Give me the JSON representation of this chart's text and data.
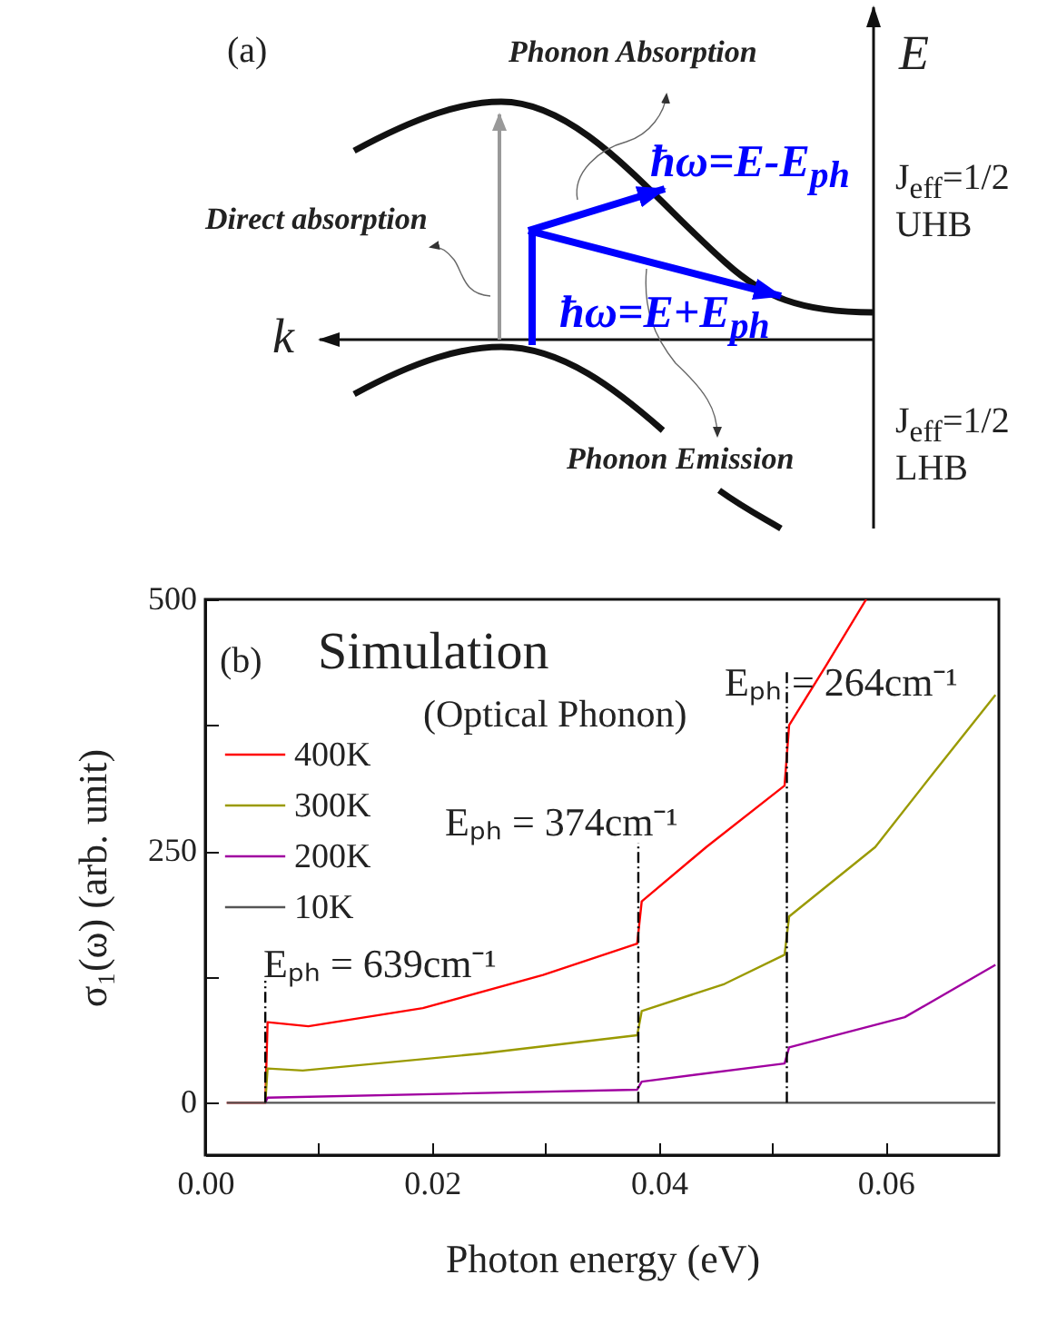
{
  "chart_data": [
    {
      "type": "other",
      "title": "(a)",
      "annotations": [
        "Phonon Absorption",
        "Direct absorption",
        "ħω=E-E$_{ph}$",
        "ħω=E+E$_{ph}$",
        "Phonon Emission",
        "E",
        "k",
        "J$_{eff}$=1/2",
        "UHB",
        "J$_{eff}$=1/2",
        "LHB"
      ]
    },
    {
      "type": "line",
      "xlabel": "Photon energy (eV)",
      "ylabel": "σ₁(ω) (arb. unit)",
      "annotations": [
        "(b)",
        "Simulation",
        "(Optical Phonon)",
        "Eₚₕ = 639cm⁻¹",
        "Eₚₕ = 374cm⁻¹",
        "Eₚₕ = 264cm⁻¹"
      ],
      "xlim": [
        0,
        0.07
      ],
      "xticks": [
        {
          "value": 0,
          "label": "0.00"
        },
        {
          "value": 0.01,
          "label": null
        },
        0.02,
        {
          "value": 0.03,
          "label": null
        },
        0.04,
        {
          "value": 0.05,
          "label": null
        },
        0.06
      ],
      "ylim": [
        -52,
        500
      ],
      "yticks": [
        0,
        {
          "value": 125,
          "label": null
        },
        250,
        {
          "value": 375,
          "label": null
        },
        500
      ],
      "grid": false,
      "legend": "top left",
      "marker": "none",
      "line_style": "solid",
      "ref_lines": [
        {
          "axis": "x",
          "value": 0.0053,
          "line_style": "dashdot",
          "color": "#000000"
        },
        {
          "axis": "x",
          "value": 0.0382,
          "line_style": "dashdot",
          "color": "#000000"
        },
        {
          "axis": "x",
          "value": 0.0513,
          "line_style": "dashdot",
          "color": "#000000"
        }
      ],
      "series": [
        {
          "name": "400K",
          "color": "#ff0000",
          "x": [
            0.0019,
            0.0053,
            0.0055,
            0.0091,
            0.0192,
            0.0298,
            0.0381,
            0.0385,
            0.0442,
            0.0511,
            0.0515,
            0.0548,
            0.0583
          ],
          "values": [
            0,
            0,
            80,
            76,
            94,
            127,
            158,
            200,
            254,
            315,
            375,
            435,
            500
          ]
        },
        {
          "name": "300K",
          "color": "#9a9a00",
          "x": [
            0.0053,
            0.0055,
            0.0086,
            0.0245,
            0.0381,
            0.0385,
            0.0458,
            0.0511,
            0.0515,
            0.0591,
            0.0644,
            0.0697
          ],
          "values": [
            0,
            34,
            32,
            49,
            67,
            91,
            118,
            147,
            185,
            254,
            330,
            405
          ]
        },
        {
          "name": "200K",
          "color": "#a000a0",
          "x": [
            0.0053,
            0.0055,
            0.0381,
            0.0385,
            0.0511,
            0.0515,
            0.0617,
            0.0697
          ],
          "values": [
            0,
            5,
            13,
            21,
            39,
            55,
            85,
            137
          ]
        },
        {
          "name": "10K",
          "color": "#555555",
          "x": [
            0.0019,
            0.0697
          ],
          "values": [
            0,
            0
          ]
        }
      ]
    }
  ]
}
